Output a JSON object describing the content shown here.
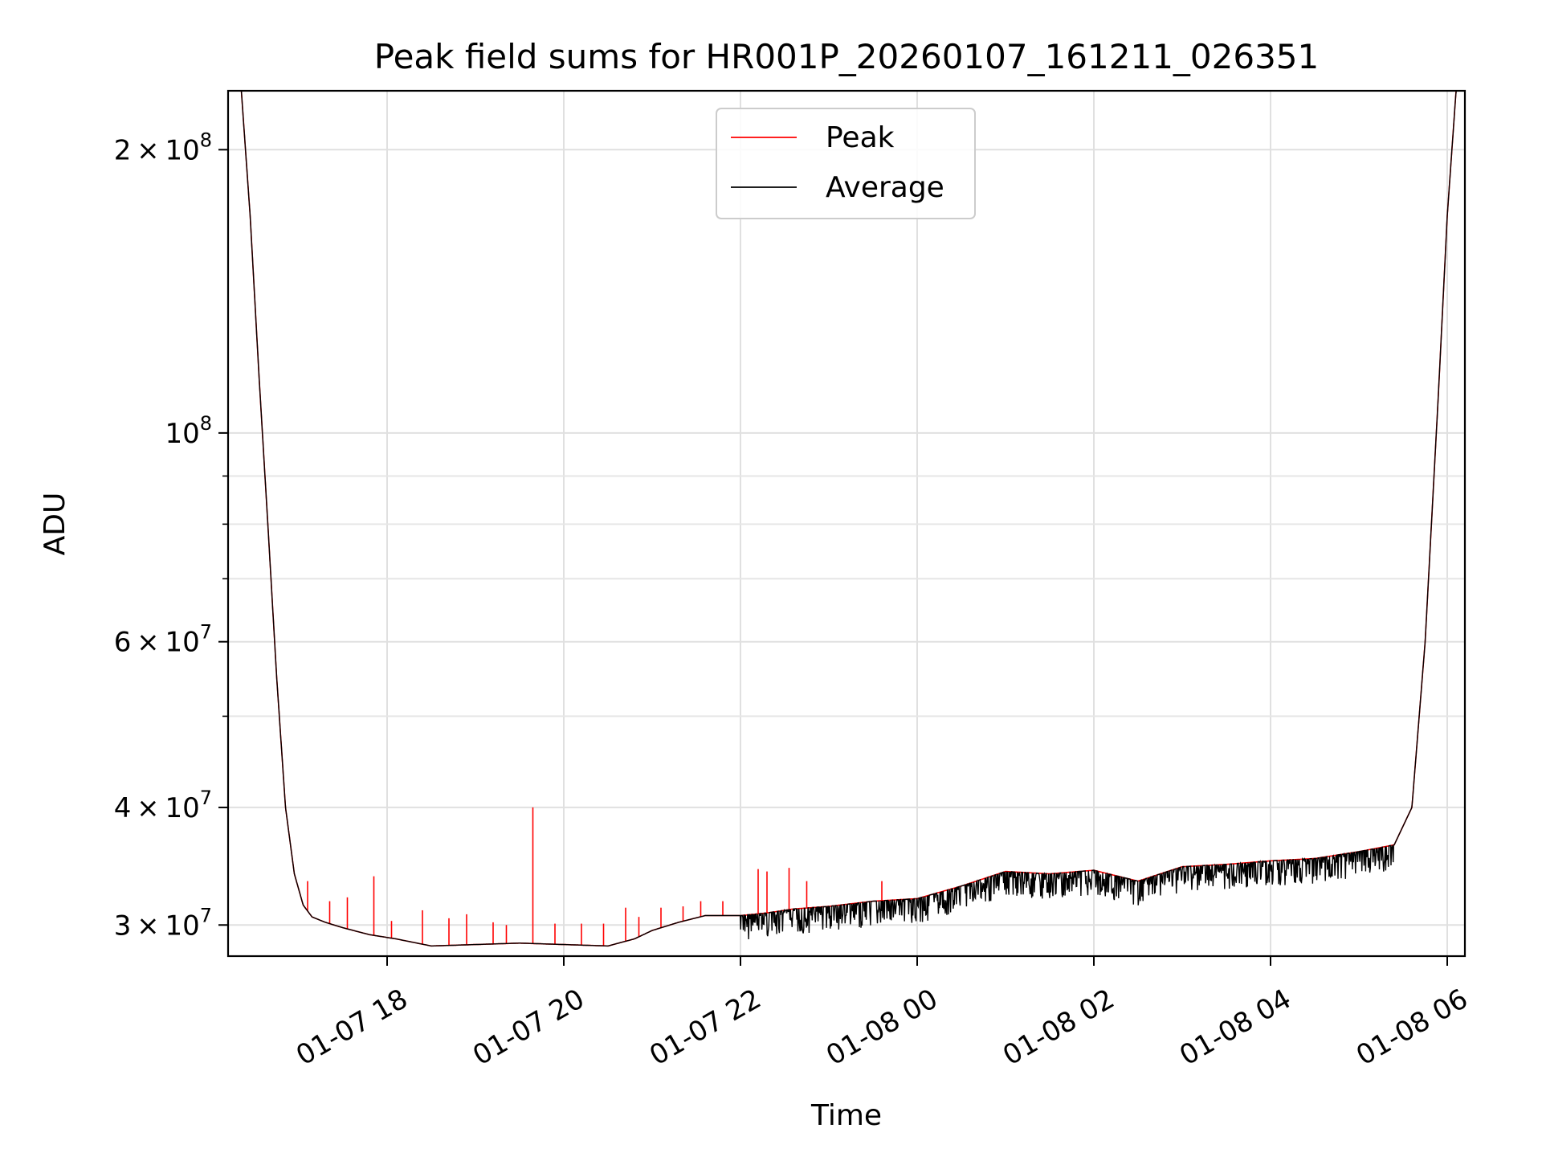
{
  "chart_data": {
    "type": "line",
    "title": "Peak field sums for HR001P_20260107_161211_026351",
    "xlabel": "Time",
    "ylabel": "ADU",
    "yscale": "log",
    "ylim": [
      27800000,
      231000000
    ],
    "xlim_hours": [
      16.2,
      30.2
    ],
    "grid": true,
    "legend": {
      "position": "upper center",
      "entries": [
        "Peak",
        "Average"
      ]
    },
    "x_ticks": [
      {
        "hour": 18,
        "label": "01-07 18"
      },
      {
        "hour": 20,
        "label": "01-07 20"
      },
      {
        "hour": 22,
        "label": "01-07 22"
      },
      {
        "hour": 24,
        "label": "01-08 00"
      },
      {
        "hour": 26,
        "label": "01-08 02"
      },
      {
        "hour": 28,
        "label": "01-08 04"
      },
      {
        "hour": 30,
        "label": "01-08 06"
      }
    ],
    "y_major_ticks": [
      {
        "value": 30000000,
        "mantissa": "3",
        "exp": "7",
        "kind": "mant"
      },
      {
        "value": 40000000,
        "mantissa": "4",
        "exp": "7",
        "kind": "mant"
      },
      {
        "value": 60000000,
        "mantissa": "6",
        "exp": "7",
        "kind": "mant"
      },
      {
        "value": 100000000,
        "mantissa": "",
        "exp": "8",
        "kind": "pow"
      },
      {
        "value": 200000000,
        "mantissa": "2",
        "exp": "8",
        "kind": "mant"
      }
    ],
    "y_minor_grid": [
      50000000,
      70000000,
      80000000,
      90000000
    ],
    "series": [
      {
        "name": "Peak",
        "color": "#ff0000",
        "x_hours": [
          16.35,
          16.45,
          16.55,
          16.65,
          16.75,
          16.85,
          16.95,
          17.05,
          17.15,
          17.3,
          17.5,
          17.8,
          18.1,
          18.5,
          19.0,
          19.5,
          20.0,
          20.5,
          20.8,
          21.0,
          21.3,
          21.6,
          22.0,
          22.3,
          22.6,
          23.0,
          23.5,
          24.0,
          24.5,
          25.0,
          25.5,
          26.0,
          26.5,
          27.0,
          27.5,
          28.0,
          28.5,
          29.0,
          29.4,
          29.6,
          29.75,
          29.9,
          30.0,
          30.1,
          30.2
        ],
        "values": [
          231000000,
          170000000,
          115000000,
          80000000,
          55000000,
          40000000,
          34000000,
          31500000,
          30600000,
          30200000,
          29800000,
          29300000,
          29000000,
          28500000,
          28600000,
          28700000,
          28600000,
          28500000,
          29000000,
          29600000,
          30200000,
          30700000,
          30700000,
          30900000,
          31200000,
          31400000,
          31800000,
          32000000,
          33000000,
          34200000,
          34000000,
          34300000,
          33400000,
          34600000,
          34800000,
          35100000,
          35300000,
          35900000,
          36500000,
          40000000,
          60000000,
          110000000,
          170000000,
          231000000,
          231000000
        ],
        "spikes": [
          {
            "h": 17.1,
            "v": 33400000
          },
          {
            "h": 17.35,
            "v": 31800000
          },
          {
            "h": 17.55,
            "v": 32100000
          },
          {
            "h": 17.85,
            "v": 33800000
          },
          {
            "h": 18.05,
            "v": 30300000
          },
          {
            "h": 18.4,
            "v": 31100000
          },
          {
            "h": 18.7,
            "v": 30500000
          },
          {
            "h": 18.9,
            "v": 30800000
          },
          {
            "h": 19.2,
            "v": 30200000
          },
          {
            "h": 19.35,
            "v": 30000000
          },
          {
            "h": 19.65,
            "v": 40000000
          },
          {
            "h": 19.9,
            "v": 30100000
          },
          {
            "h": 20.2,
            "v": 30100000
          },
          {
            "h": 20.45,
            "v": 30100000
          },
          {
            "h": 20.7,
            "v": 31300000
          },
          {
            "h": 20.85,
            "v": 30600000
          },
          {
            "h": 21.1,
            "v": 31300000
          },
          {
            "h": 21.35,
            "v": 31400000
          },
          {
            "h": 21.55,
            "v": 31800000
          },
          {
            "h": 21.8,
            "v": 31800000
          },
          {
            "h": 22.2,
            "v": 34400000
          },
          {
            "h": 22.3,
            "v": 34200000
          },
          {
            "h": 22.55,
            "v": 34500000
          },
          {
            "h": 22.75,
            "v": 33400000
          },
          {
            "h": 23.6,
            "v": 33400000
          }
        ]
      },
      {
        "name": "Average",
        "color": "#000000",
        "x_hours": [
          16.35,
          16.45,
          16.55,
          16.65,
          16.75,
          16.85,
          16.95,
          17.05,
          17.15,
          17.3,
          17.5,
          17.8,
          18.1,
          18.5,
          19.0,
          19.5,
          20.0,
          20.5,
          20.8,
          21.0,
          21.3,
          21.6,
          22.0,
          22.3,
          22.6,
          23.0,
          23.5,
          24.0,
          24.5,
          25.0,
          25.5,
          26.0,
          26.5,
          27.0,
          27.5,
          28.0,
          28.5,
          29.0,
          29.4,
          29.6,
          29.75,
          29.9,
          30.0,
          30.1,
          30.2
        ],
        "values": [
          231000000,
          170000000,
          115000000,
          80000000,
          55000000,
          40000000,
          34000000,
          31500000,
          30600000,
          30200000,
          29800000,
          29300000,
          29000000,
          28500000,
          28600000,
          28700000,
          28600000,
          28500000,
          29000000,
          29600000,
          30200000,
          30700000,
          30700000,
          30900000,
          31200000,
          31400000,
          31800000,
          32000000,
          33000000,
          34200000,
          34000000,
          34300000,
          33400000,
          34600000,
          34800000,
          35100000,
          35300000,
          35900000,
          36500000,
          40000000,
          60000000,
          110000000,
          170000000,
          231000000,
          231000000
        ],
        "noise_start_hour": 22.0,
        "noise_end_hour": 29.4,
        "noise_depth_fraction": 0.06
      }
    ]
  }
}
